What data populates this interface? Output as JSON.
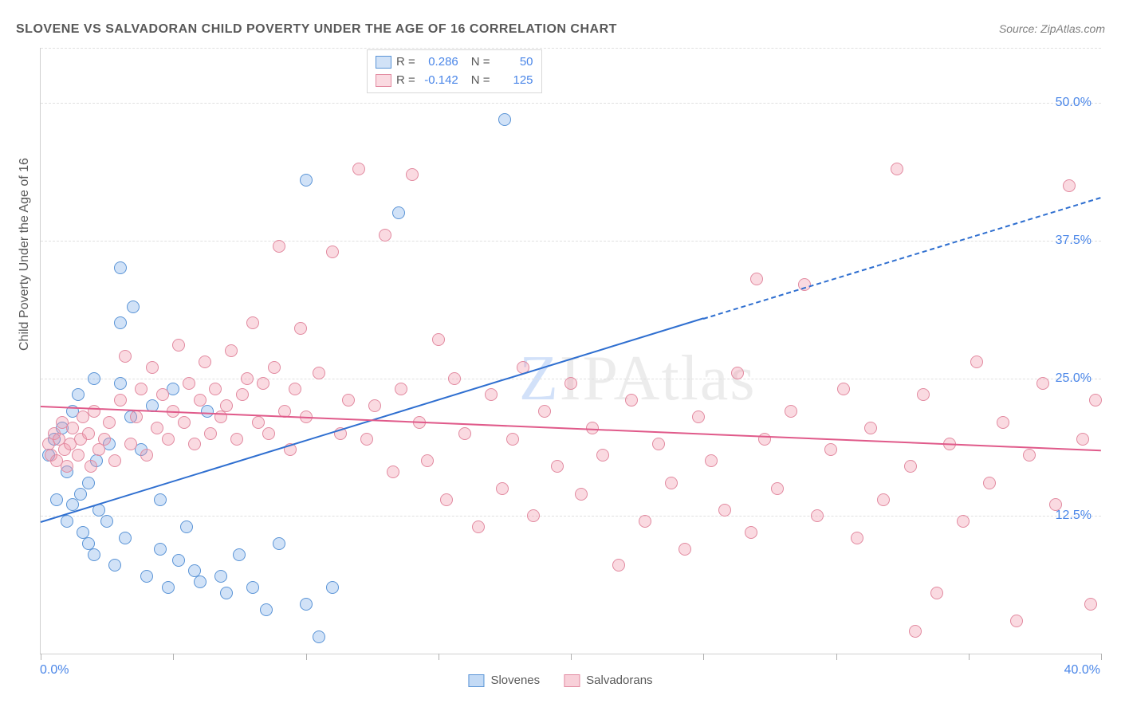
{
  "title": "SLOVENE VS SALVADORAN CHILD POVERTY UNDER THE AGE OF 16 CORRELATION CHART",
  "source": "Source: ZipAtlas.com",
  "ylabel": "Child Poverty Under the Age of 16",
  "watermark_z": "Z",
  "watermark_rest": "IPAtlas",
  "chart": {
    "type": "scatter",
    "background_color": "#ffffff",
    "grid_color": "#e0e0e0",
    "axis_color": "#d0d0d0",
    "label_color": "#595959",
    "tick_label_color": "#4a86e8",
    "xlim": [
      0,
      40
    ],
    "ylim": [
      0,
      55
    ],
    "x_min_label": "0.0%",
    "x_max_label": "40.0%",
    "x_ticks": [
      0,
      5,
      10,
      15,
      20,
      25,
      30,
      35,
      40
    ],
    "y_grid": [
      {
        "value": 12.5,
        "label": "12.5%"
      },
      {
        "value": 25.0,
        "label": "25.0%"
      },
      {
        "value": 37.5,
        "label": "37.5%"
      },
      {
        "value": 50.0,
        "label": "50.0%"
      },
      {
        "value": 55.0,
        "label": ""
      }
    ],
    "marker_radius": 7,
    "marker_stroke_width": 1.2,
    "series": [
      {
        "name": "Slovenes",
        "fill": "rgba(122,172,232,0.35)",
        "stroke": "#5a94d6",
        "R": "0.286",
        "N": "50",
        "trend": {
          "x1": 0,
          "y1": 12.0,
          "x2": 25,
          "y2": 30.5,
          "x2_dash": 40,
          "y2_dash": 41.5,
          "color": "#2f6fd0",
          "width": 2
        },
        "points": [
          [
            0.3,
            18.0
          ],
          [
            0.5,
            19.5
          ],
          [
            0.6,
            14.0
          ],
          [
            0.8,
            20.5
          ],
          [
            1.0,
            16.5
          ],
          [
            1.0,
            12.0
          ],
          [
            1.2,
            13.5
          ],
          [
            1.2,
            22.0
          ],
          [
            1.4,
            23.5
          ],
          [
            1.5,
            14.5
          ],
          [
            1.6,
            11.0
          ],
          [
            1.8,
            10.0
          ],
          [
            1.8,
            15.5
          ],
          [
            2.0,
            25.0
          ],
          [
            2.0,
            9.0
          ],
          [
            2.1,
            17.5
          ],
          [
            2.2,
            13.0
          ],
          [
            2.5,
            12.0
          ],
          [
            2.6,
            19.0
          ],
          [
            2.8,
            8.0
          ],
          [
            3.0,
            24.5
          ],
          [
            3.0,
            35.0
          ],
          [
            3.2,
            10.5
          ],
          [
            3.4,
            21.5
          ],
          [
            3.5,
            31.5
          ],
          [
            3.8,
            18.5
          ],
          [
            4.0,
            7.0
          ],
          [
            4.2,
            22.5
          ],
          [
            4.5,
            9.5
          ],
          [
            4.8,
            6.0
          ],
          [
            5.0,
            24.0
          ],
          [
            5.2,
            8.5
          ],
          [
            5.5,
            11.5
          ],
          [
            5.8,
            7.5
          ],
          [
            6.0,
            6.5
          ],
          [
            6.3,
            22.0
          ],
          [
            6.8,
            7.0
          ],
          [
            7.0,
            5.5
          ],
          [
            7.5,
            9.0
          ],
          [
            8.0,
            6.0
          ],
          [
            8.5,
            4.0
          ],
          [
            9.0,
            10.0
          ],
          [
            10.0,
            43.0
          ],
          [
            10.0,
            4.5
          ],
          [
            10.5,
            1.5
          ],
          [
            11.0,
            6.0
          ],
          [
            13.5,
            40.0
          ],
          [
            17.5,
            48.5
          ],
          [
            3.0,
            30.0
          ],
          [
            4.5,
            14.0
          ]
        ]
      },
      {
        "name": "Salvadorans",
        "fill": "rgba(240,150,170,0.35)",
        "stroke": "#e28aa0",
        "R": "-0.142",
        "N": "125",
        "trend": {
          "x1": 0,
          "y1": 22.5,
          "x2": 40,
          "y2": 18.5,
          "color": "#e05a8a",
          "width": 2
        },
        "points": [
          [
            0.3,
            19.0
          ],
          [
            0.4,
            18.0
          ],
          [
            0.5,
            20.0
          ],
          [
            0.6,
            17.5
          ],
          [
            0.7,
            19.5
          ],
          [
            0.8,
            21.0
          ],
          [
            0.9,
            18.5
          ],
          [
            1.0,
            17.0
          ],
          [
            1.1,
            19.0
          ],
          [
            1.2,
            20.5
          ],
          [
            1.4,
            18.0
          ],
          [
            1.5,
            19.5
          ],
          [
            1.6,
            21.5
          ],
          [
            1.8,
            20.0
          ],
          [
            1.9,
            17.0
          ],
          [
            2.0,
            22.0
          ],
          [
            2.2,
            18.5
          ],
          [
            2.4,
            19.5
          ],
          [
            2.6,
            21.0
          ],
          [
            2.8,
            17.5
          ],
          [
            3.0,
            23.0
          ],
          [
            3.2,
            27.0
          ],
          [
            3.4,
            19.0
          ],
          [
            3.6,
            21.5
          ],
          [
            3.8,
            24.0
          ],
          [
            4.0,
            18.0
          ],
          [
            4.2,
            26.0
          ],
          [
            4.4,
            20.5
          ],
          [
            4.6,
            23.5
          ],
          [
            4.8,
            19.5
          ],
          [
            5.0,
            22.0
          ],
          [
            5.2,
            28.0
          ],
          [
            5.4,
            21.0
          ],
          [
            5.6,
            24.5
          ],
          [
            5.8,
            19.0
          ],
          [
            6.0,
            23.0
          ],
          [
            6.2,
            26.5
          ],
          [
            6.4,
            20.0
          ],
          [
            6.6,
            24.0
          ],
          [
            6.8,
            21.5
          ],
          [
            7.0,
            22.5
          ],
          [
            7.2,
            27.5
          ],
          [
            7.4,
            19.5
          ],
          [
            7.6,
            23.5
          ],
          [
            7.8,
            25.0
          ],
          [
            8.0,
            30.0
          ],
          [
            8.2,
            21.0
          ],
          [
            8.4,
            24.5
          ],
          [
            8.6,
            20.0
          ],
          [
            8.8,
            26.0
          ],
          [
            9.0,
            37.0
          ],
          [
            9.2,
            22.0
          ],
          [
            9.4,
            18.5
          ],
          [
            9.6,
            24.0
          ],
          [
            9.8,
            29.5
          ],
          [
            10.0,
            21.5
          ],
          [
            10.5,
            25.5
          ],
          [
            11.0,
            36.5
          ],
          [
            11.3,
            20.0
          ],
          [
            11.6,
            23.0
          ],
          [
            12.0,
            44.0
          ],
          [
            12.3,
            19.5
          ],
          [
            12.6,
            22.5
          ],
          [
            13.0,
            38.0
          ],
          [
            13.3,
            16.5
          ],
          [
            13.6,
            24.0
          ],
          [
            14.0,
            43.5
          ],
          [
            14.3,
            21.0
          ],
          [
            14.6,
            17.5
          ],
          [
            15.0,
            28.5
          ],
          [
            15.3,
            14.0
          ],
          [
            15.6,
            25.0
          ],
          [
            16.0,
            20.0
          ],
          [
            16.5,
            11.5
          ],
          [
            17.0,
            23.5
          ],
          [
            17.4,
            15.0
          ],
          [
            17.8,
            19.5
          ],
          [
            18.2,
            26.0
          ],
          [
            18.6,
            12.5
          ],
          [
            19.0,
            22.0
          ],
          [
            19.5,
            17.0
          ],
          [
            20.0,
            24.5
          ],
          [
            20.4,
            14.5
          ],
          [
            20.8,
            20.5
          ],
          [
            21.2,
            18.0
          ],
          [
            21.8,
            8.0
          ],
          [
            22.3,
            23.0
          ],
          [
            22.8,
            12.0
          ],
          [
            23.3,
            19.0
          ],
          [
            23.8,
            15.5
          ],
          [
            24.3,
            9.5
          ],
          [
            24.8,
            21.5
          ],
          [
            25.3,
            17.5
          ],
          [
            25.8,
            13.0
          ],
          [
            26.3,
            25.5
          ],
          [
            26.8,
            11.0
          ],
          [
            27.3,
            19.5
          ],
          [
            27.8,
            15.0
          ],
          [
            28.3,
            22.0
          ],
          [
            28.8,
            33.5
          ],
          [
            29.3,
            12.5
          ],
          [
            29.8,
            18.5
          ],
          [
            30.3,
            24.0
          ],
          [
            30.8,
            10.5
          ],
          [
            31.3,
            20.5
          ],
          [
            31.8,
            14.0
          ],
          [
            32.3,
            44.0
          ],
          [
            32.8,
            17.0
          ],
          [
            33.3,
            23.5
          ],
          [
            33.8,
            5.5
          ],
          [
            34.3,
            19.0
          ],
          [
            34.8,
            12.0
          ],
          [
            35.3,
            26.5
          ],
          [
            35.8,
            15.5
          ],
          [
            36.3,
            21.0
          ],
          [
            36.8,
            3.0
          ],
          [
            37.3,
            18.0
          ],
          [
            37.8,
            24.5
          ],
          [
            38.3,
            13.5
          ],
          [
            38.8,
            42.5
          ],
          [
            39.3,
            19.5
          ],
          [
            39.6,
            4.5
          ],
          [
            39.8,
            23.0
          ],
          [
            27.0,
            34.0
          ],
          [
            33.0,
            2.0
          ]
        ]
      }
    ]
  },
  "stats_legend": {
    "label_R": "R =",
    "label_N": "N ="
  },
  "bottom_legend": {
    "items": [
      {
        "label": "Slovenes",
        "fill": "rgba(122,172,232,0.45)",
        "stroke": "#5a94d6"
      },
      {
        "label": "Salvadorans",
        "fill": "rgba(240,150,170,0.45)",
        "stroke": "#e28aa0"
      }
    ]
  }
}
